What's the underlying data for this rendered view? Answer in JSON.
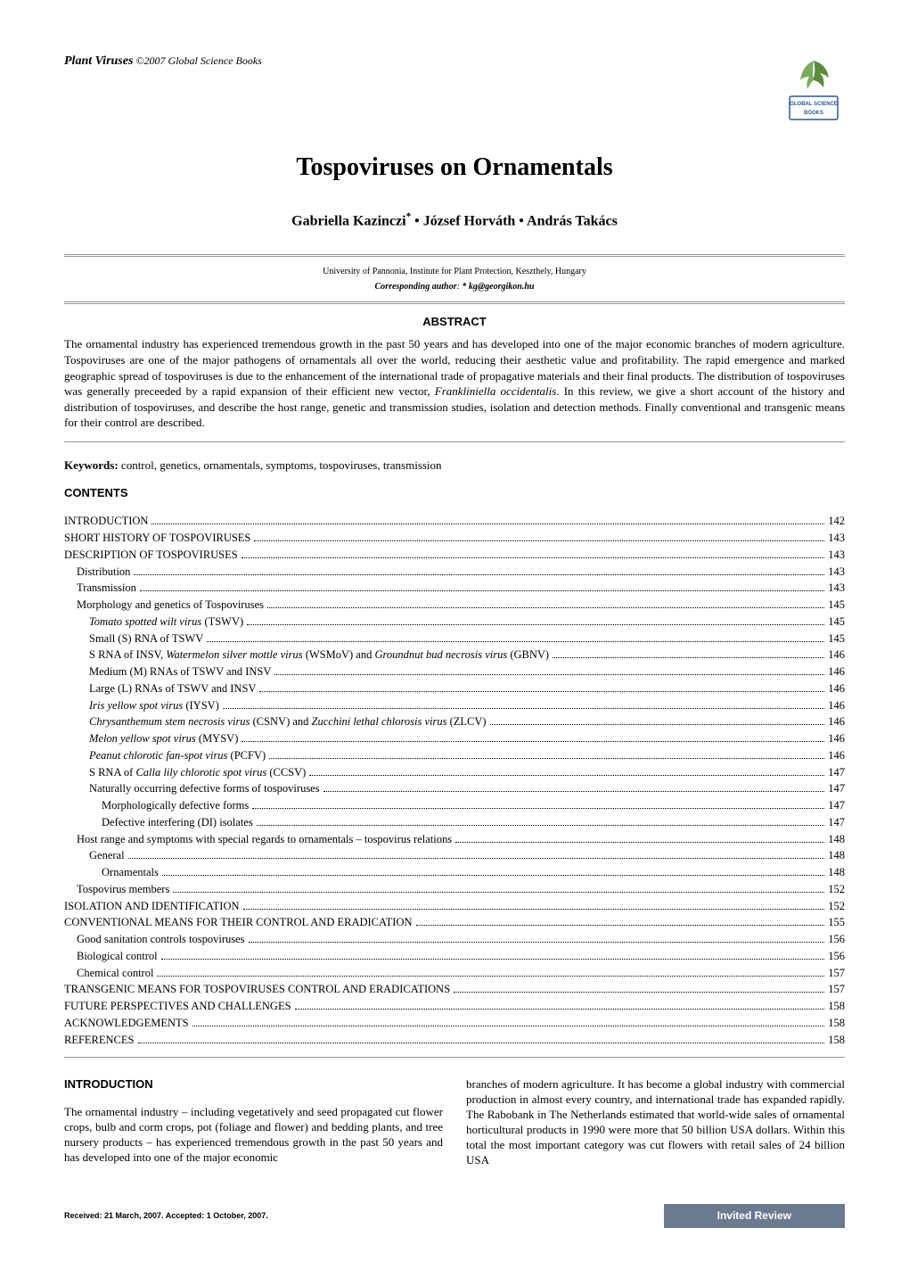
{
  "header": {
    "journal_name": "Plant Viruses",
    "journal_suffix": " ©2007 Global Science Books",
    "logo_text": "GLOBAL SCIENCE BOOKS",
    "logo_colors": {
      "leaf": "#5a8c3a",
      "box": "#2d5a8c"
    }
  },
  "title": "Tospoviruses on Ornamentals",
  "authors": "Gabriella Kazinczi* • József Horváth • András Takács",
  "affiliation": "University of Pannonia, Institute for Plant Protection, Keszthely, Hungary",
  "corresponding_label": "Corresponding author",
  "corresponding_value": ": * kg@georgikon.hu",
  "abstract_heading": "ABSTRACT",
  "abstract_text_1": "The ornamental industry has experienced tremendous growth in the past 50 years and has developed into one of the major economic branches of modern agriculture. Tospoviruses are one of the major pathogens of ornamentals all over the world, reducing their aesthetic value and profitability. The rapid emergence and marked geographic spread of tospoviruses is due to the enhancement of the international trade of propagative materials and their final products. The distribution of tospoviruses was generally preceeded by a rapid expansion of their efficient new vector, ",
  "abstract_italic": "Frankliniella occidentalis",
  "abstract_text_2": ". In this review, we give a short account of the history and distribution of tospoviruses, and describe the host range, genetic and transmission studies, isolation and detection methods. Finally conventional and transgenic means for their control are described.",
  "keywords_label": "Keywords:",
  "keywords_value": " control, genetics, ornamentals, symptoms, tospoviruses, transmission",
  "contents_heading": "CONTENTS",
  "toc": [
    {
      "label": "INTRODUCTION",
      "page": "142",
      "indent": 0,
      "italic": false
    },
    {
      "label": "SHORT HISTORY OF TOSPOVIRUSES",
      "page": "143",
      "indent": 0,
      "italic": false
    },
    {
      "label": "DESCRIPTION OF TOSPOVIRUSES",
      "page": "143",
      "indent": 0,
      "italic": false
    },
    {
      "label": "Distribution",
      "page": "143",
      "indent": 1,
      "italic": false
    },
    {
      "label": "Transmission",
      "page": "143",
      "indent": 1,
      "italic": false
    },
    {
      "label": "Morphology and genetics of Tospoviruses",
      "page": "145",
      "indent": 1,
      "italic": false
    },
    {
      "label_pre": "",
      "label_italic": "Tomato spotted wilt virus",
      "label_post": " (TSWV)",
      "page": "145",
      "indent": 2,
      "italic": true
    },
    {
      "label": "Small (S) RNA of TSWV",
      "page": "145",
      "indent": 2,
      "italic": false
    },
    {
      "label_pre": "S RNA of INSV, ",
      "label_italic": "Watermelon silver mottle virus",
      "label_mid": " (WSMoV) and ",
      "label_italic2": "Groundnut bud necrosis virus",
      "label_post": " (GBNV)",
      "page": "146",
      "indent": 2,
      "italic": true
    },
    {
      "label": "Medium (M) RNAs of TSWV and INSV",
      "page": "146",
      "indent": 2,
      "italic": false
    },
    {
      "label": "Large (L) RNAs of TSWV and INSV",
      "page": "146",
      "indent": 2,
      "italic": false
    },
    {
      "label_pre": "",
      "label_italic": "Iris yellow spot virus",
      "label_post": " (IYSV)",
      "page": "146",
      "indent": 2,
      "italic": true
    },
    {
      "label_pre": "",
      "label_italic": "Chrysanthemum stem necrosis virus",
      "label_mid": " (CSNV) and ",
      "label_italic2": "Zucchini lethal chlorosis virus",
      "label_post": " (ZLCV)",
      "page": "146",
      "indent": 2,
      "italic": true
    },
    {
      "label_pre": "",
      "label_italic": "Melon yellow spot virus",
      "label_post": " (MYSV)",
      "page": "146",
      "indent": 2,
      "italic": true
    },
    {
      "label_pre": "",
      "label_italic": "Peanut chlorotic fan-spot virus",
      "label_post": " (PCFV)",
      "page": "146",
      "indent": 2,
      "italic": true
    },
    {
      "label_pre": "S RNA of ",
      "label_italic": "Calla lily chlorotic spot virus",
      "label_post": " (CCSV)",
      "page": "147",
      "indent": 2,
      "italic": true
    },
    {
      "label": "Naturally occurring defective forms of tospoviruses",
      "page": "147",
      "indent": 2,
      "italic": false
    },
    {
      "label": "Morphologically defective forms",
      "page": "147",
      "indent": 3,
      "italic": false
    },
    {
      "label": "Defective interfering (DI) isolates",
      "page": "147",
      "indent": 3,
      "italic": false
    },
    {
      "label": "Host range and symptoms with special regards to ornamentals – tospovirus relations",
      "page": "148",
      "indent": 1,
      "italic": false
    },
    {
      "label": "General",
      "page": "148",
      "indent": 2,
      "italic": false
    },
    {
      "label": "Ornamentals",
      "page": "148",
      "indent": 3,
      "italic": false
    },
    {
      "label": "Tospovirus members",
      "page": "152",
      "indent": 1,
      "italic": false
    },
    {
      "label": "ISOLATION AND IDENTIFICATION",
      "page": "152",
      "indent": 0,
      "italic": false
    },
    {
      "label": "CONVENTIONAL MEANS FOR THEIR CONTROL AND ERADICATION",
      "page": "155",
      "indent": 0,
      "italic": false
    },
    {
      "label": "Good sanitation controls tospoviruses",
      "page": "156",
      "indent": 1,
      "italic": false
    },
    {
      "label": "Biological control",
      "page": "156",
      "indent": 1,
      "italic": false
    },
    {
      "label": "Chemical control",
      "page": "157",
      "indent": 1,
      "italic": false
    },
    {
      "label": "TRANSGENIC MEANS FOR TOSPOVIRUSES CONTROL AND ERADICATIONS",
      "page": "157",
      "indent": 0,
      "italic": false
    },
    {
      "label": "FUTURE PERSPECTIVES AND CHALLENGES",
      "page": "158",
      "indent": 0,
      "italic": false
    },
    {
      "label": "ACKNOWLEDGEMENTS",
      "page": "158",
      "indent": 0,
      "italic": false
    },
    {
      "label": "REFERENCES",
      "page": "158",
      "indent": 0,
      "italic": false
    }
  ],
  "introduction_heading": "INTRODUCTION",
  "intro_col1": "The ornamental industry – including vegetatively and seed propagated cut flower crops, bulb and corm crops, pot (foliage and flower) and bedding plants, and tree nursery products – has experienced tremendous growth in the past 50 years and has developed into one of the major economic",
  "intro_col2": "branches of modern agriculture. It has become a global industry with commercial production in almost every country, and international trade has expanded rapidly. The Rabobank in The Netherlands estimated that world-wide sales of ornamental horticultural products in 1990 were more that 50 billion USA dollars. Within this total the most important category was cut flowers with retail sales of 24 billion USA",
  "footer": {
    "received": "Received: 21 March, 2007. Accepted: 1 October, 2007.",
    "badge": "Invited Review",
    "badge_bg": "#6b7a8f",
    "badge_fg": "#ffffff"
  }
}
